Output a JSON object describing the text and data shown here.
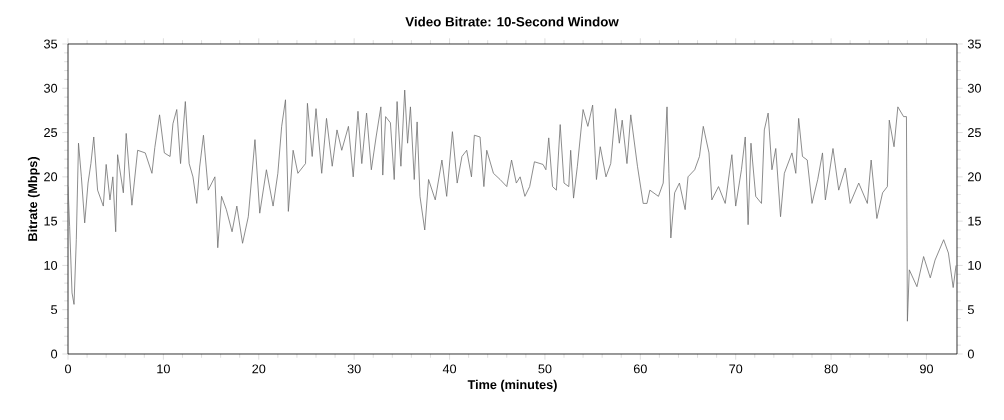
{
  "chart_data": {
    "type": "line",
    "title": "Video Bitrate: 10-Second Window",
    "xlabel": "Time (minutes)",
    "ylabel": "Bitrate (Mbps)",
    "xlim": [
      0,
      93.2
    ],
    "ylim": [
      0,
      35
    ],
    "xticks": [
      0,
      10,
      20,
      30,
      40,
      50,
      60,
      70,
      80,
      90
    ],
    "yticks": [
      0,
      5,
      10,
      15,
      20,
      25,
      30,
      35
    ],
    "y2lim": [
      0,
      35
    ],
    "y2ticks": [
      0,
      5,
      10,
      15,
      20,
      25,
      30,
      35
    ],
    "grid": false,
    "marker": "none",
    "line_style": "solid",
    "series": [
      {
        "color": "#707070",
        "x": [
          0,
          0.17,
          0.42,
          0.63,
          0.87,
          1.1,
          1.4,
          1.75,
          2.1,
          2.4,
          2.7,
          3.1,
          3.7,
          4.0,
          4.4,
          4.7,
          5.0,
          5.2,
          5.8,
          6.1,
          6.7,
          7.3,
          8.1,
          8.8,
          9.1,
          9.6,
          10.1,
          10.7,
          11.0,
          11.4,
          11.8,
          12.3,
          12.7,
          13.1,
          13.5,
          13.8,
          14.2,
          14.7,
          15.4,
          15.7,
          16.1,
          16.6,
          17.2,
          17.7,
          18.3,
          18.9,
          19.6,
          20.1,
          20.8,
          21.5,
          22.0,
          22.4,
          22.8,
          23.1,
          23.6,
          24.1,
          24.9,
          25.1,
          25.6,
          26.0,
          26.6,
          27.1,
          27.7,
          28.2,
          28.7,
          29.4,
          29.9,
          30.4,
          30.8,
          31.3,
          31.8,
          32.3,
          32.8,
          33.0,
          33.3,
          33.8,
          34.2,
          34.5,
          34.9,
          35.3,
          35.6,
          35.9,
          36.3,
          36.6,
          36.9,
          37.4,
          37.8,
          38.5,
          39.2,
          39.7,
          40.3,
          40.8,
          41.3,
          41.8,
          42.3,
          42.6,
          43.2,
          43.6,
          43.9,
          44.6,
          45.3,
          46.0,
          46.5,
          47.0,
          47.4,
          47.9,
          48.4,
          48.9,
          49.8,
          50.1,
          50.4,
          50.8,
          51.2,
          51.6,
          52.0,
          52.5,
          52.7,
          53.0,
          53.4,
          54.0,
          54.5,
          55.0,
          55.4,
          55.8,
          56.4,
          56.9,
          57.4,
          57.8,
          58.1,
          58.6,
          59.0,
          59.7,
          60.3,
          60.7,
          61.0,
          61.9,
          62.4,
          62.8,
          63.0,
          63.2,
          63.6,
          64.1,
          64.7,
          65.0,
          65.7,
          66.2,
          66.6,
          67.2,
          67.5,
          68.2,
          68.9,
          69.6,
          70.0,
          70.6,
          71.0,
          71.3,
          71.6,
          72.1,
          72.7,
          73.0,
          73.4,
          73.8,
          74.2,
          74.7,
          75.1,
          75.9,
          76.3,
          76.6,
          77.0,
          77.5,
          78.0,
          78.6,
          79.1,
          79.4,
          80.2,
          80.8,
          81.5,
          82.0,
          82.9,
          83.8,
          84.2,
          84.8,
          85.4,
          85.9,
          86.1,
          86.6,
          87.0,
          87.6,
          87.9,
          88.0,
          88.2,
          89.0,
          89.7,
          90.4,
          90.9,
          91.8,
          92.3,
          92.8,
          93.1
        ],
        "values": [
          18.9,
          14.4,
          6.9,
          5.6,
          12.9,
          23.8,
          20.0,
          14.8,
          19.3,
          21.5,
          24.5,
          18.5,
          16.7,
          21.4,
          17.4,
          20.0,
          13.8,
          22.5,
          18.2,
          24.9,
          16.8,
          23.0,
          22.7,
          20.4,
          23.3,
          27.0,
          22.7,
          22.3,
          26.0,
          27.6,
          21.5,
          28.5,
          21.5,
          20.0,
          17.0,
          21.1,
          24.7,
          18.5,
          20.0,
          12.0,
          17.8,
          16.3,
          13.8,
          16.7,
          12.5,
          15.5,
          24.2,
          15.9,
          20.8,
          16.7,
          20.4,
          25.7,
          28.7,
          16.1,
          23.0,
          20.4,
          21.5,
          28.3,
          22.3,
          27.7,
          20.4,
          26.6,
          21.2,
          25.3,
          23.0,
          25.7,
          20.0,
          27.4,
          21.5,
          27.2,
          20.8,
          24.5,
          27.9,
          20.2,
          26.8,
          26.1,
          19.7,
          28.5,
          21.2,
          29.8,
          23.8,
          27.9,
          19.7,
          26.2,
          17.8,
          14.0,
          19.7,
          17.4,
          21.9,
          17.8,
          25.1,
          19.3,
          22.3,
          23.0,
          20.0,
          24.7,
          24.5,
          18.9,
          23.0,
          20.4,
          19.7,
          18.9,
          21.9,
          19.3,
          20.0,
          17.8,
          18.9,
          21.7,
          21.4,
          20.8,
          24.4,
          18.9,
          18.5,
          25.9,
          19.3,
          18.9,
          23.0,
          17.6,
          21.2,
          27.6,
          25.7,
          28.1,
          19.7,
          23.4,
          20.0,
          21.5,
          27.7,
          23.8,
          26.4,
          21.5,
          27.0,
          21.2,
          17.0,
          17.0,
          18.5,
          17.8,
          19.3,
          27.9,
          20.4,
          13.1,
          18.2,
          19.3,
          16.3,
          20.0,
          20.8,
          22.3,
          25.7,
          22.7,
          17.4,
          18.9,
          17.0,
          22.5,
          16.7,
          20.8,
          24.5,
          14.6,
          23.8,
          17.8,
          17.0,
          25.3,
          27.2,
          20.8,
          23.2,
          15.5,
          20.4,
          22.7,
          20.4,
          26.6,
          22.3,
          21.9,
          17.0,
          19.7,
          22.7,
          17.4,
          23.2,
          18.5,
          21.0,
          17.0,
          19.3,
          17.0,
          21.9,
          15.3,
          18.2,
          18.9,
          26.4,
          23.4,
          27.9,
          26.8,
          26.8,
          3.7,
          9.5,
          7.6,
          11.0,
          8.6,
          10.6,
          12.9,
          11.4,
          7.5,
          10.0
        ]
      }
    ]
  }
}
